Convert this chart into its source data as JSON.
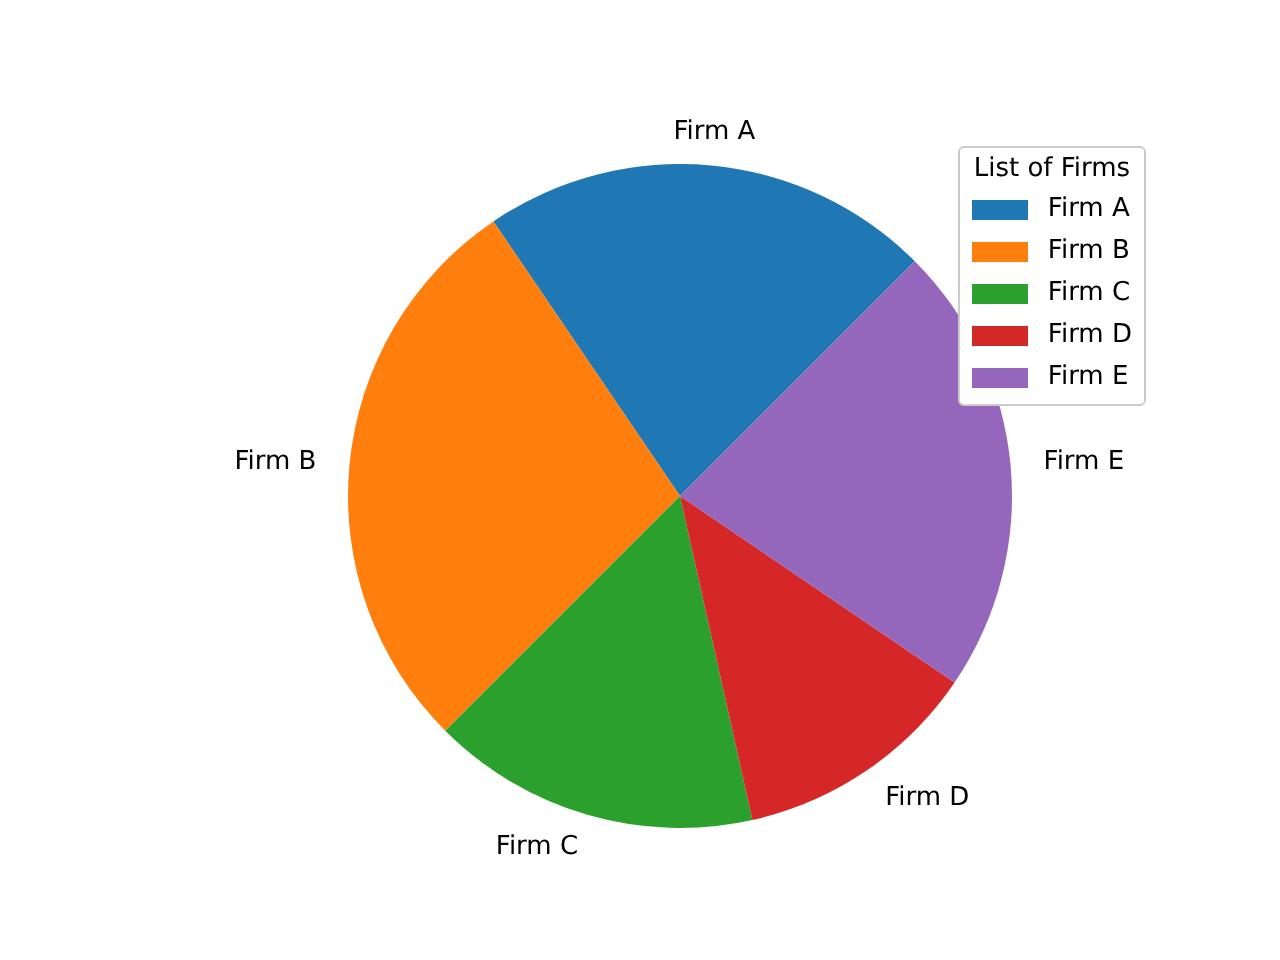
{
  "chart_data": {
    "type": "pie",
    "categories": [
      "Firm A",
      "Firm B",
      "Firm C",
      "Firm D",
      "Firm E"
    ],
    "values": [
      22,
      28,
      16,
      12,
      22
    ],
    "colors": [
      "#1f77b4",
      "#ff7f0e",
      "#2ca02c",
      "#d62728",
      "#9467bd"
    ],
    "legend_title": "List of Firms",
    "legend": "top right"
  }
}
